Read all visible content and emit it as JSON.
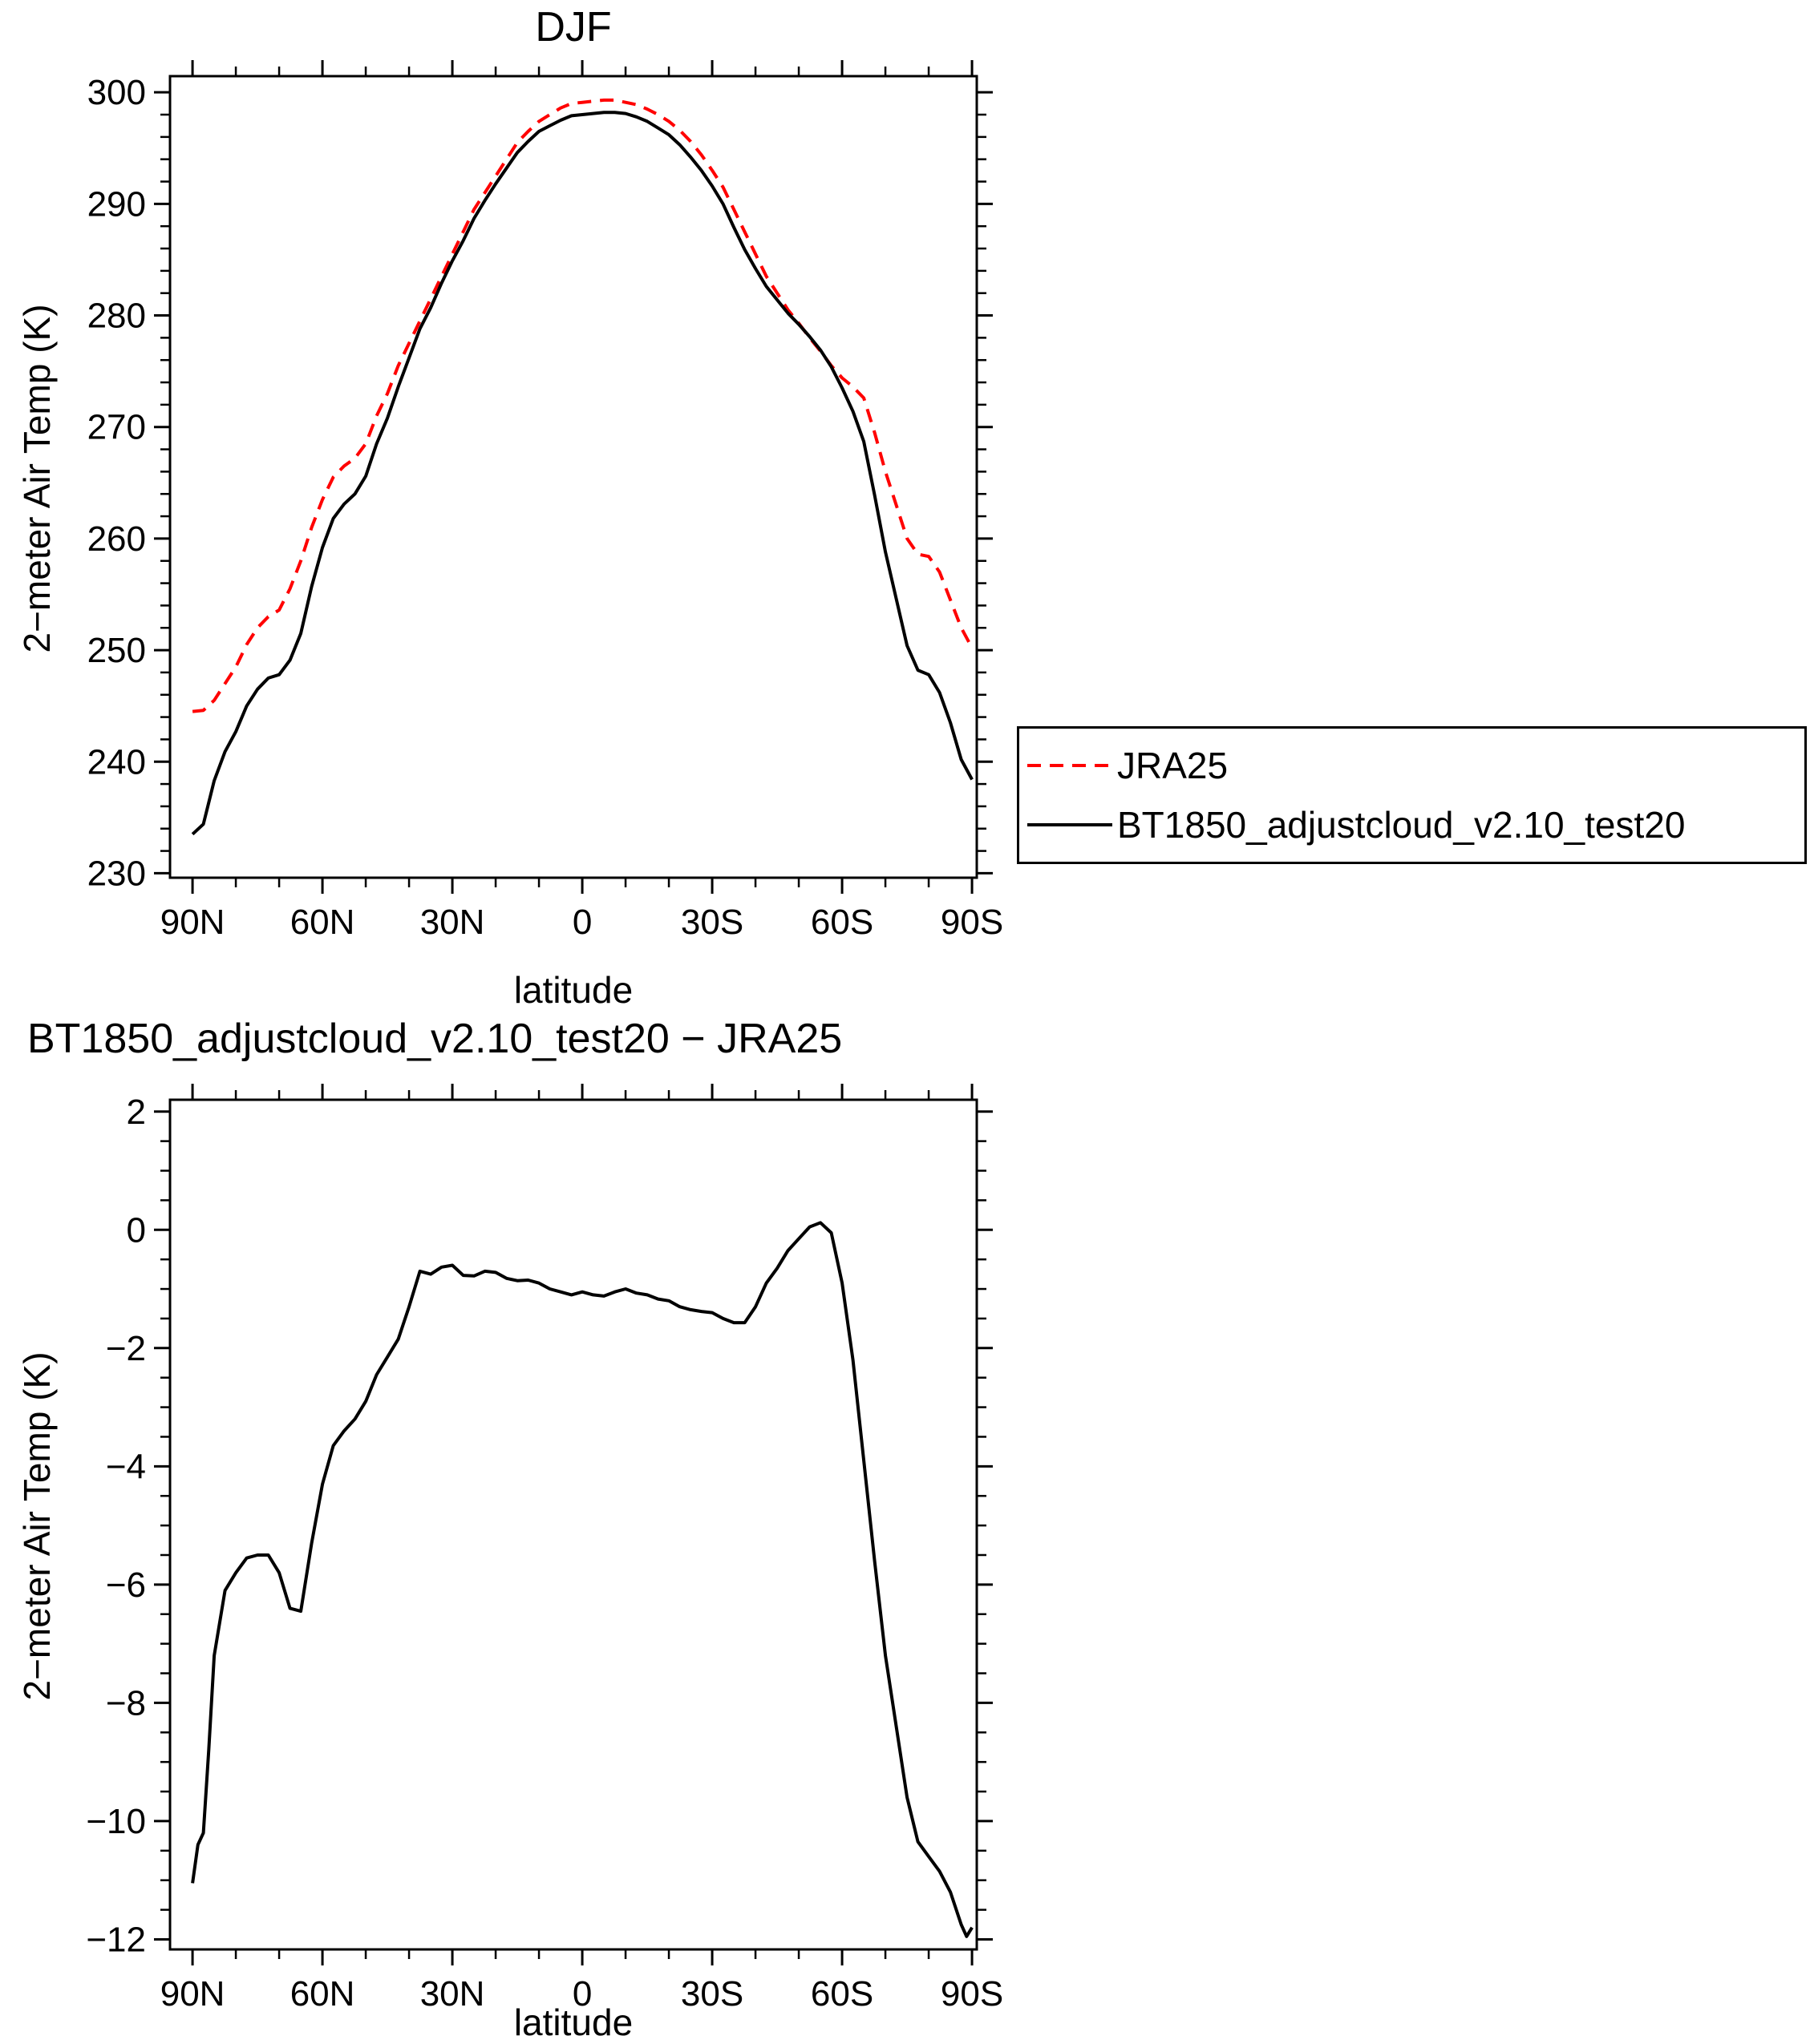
{
  "style": {
    "background": "#ffffff",
    "axis_color": "#000000",
    "red_series_color": "#ff0000"
  },
  "chart_data": [
    {
      "id": "djf",
      "type": "line",
      "title": "DJF",
      "xlabel": "latitude",
      "ylabel": "2−meter Air Temp (K)",
      "xlim": [
        95.2,
        -91.1
      ],
      "ylim": [
        229.6,
        301.45
      ],
      "grid": false,
      "x_minor_step": 10,
      "y_minor_step": 2,
      "xticks": [
        {
          "v": 90,
          "label": "90N"
        },
        {
          "v": 60,
          "label": "60N"
        },
        {
          "v": 30,
          "label": "30N"
        },
        {
          "v": 0,
          "label": "0"
        },
        {
          "v": -30,
          "label": "30S"
        },
        {
          "v": -60,
          "label": "60S"
        },
        {
          "v": -90,
          "label": "90S"
        }
      ],
      "yticks": [
        {
          "v": 230,
          "label": "230"
        },
        {
          "v": 240,
          "label": "240"
        },
        {
          "v": 250,
          "label": "250"
        },
        {
          "v": 260,
          "label": "260"
        },
        {
          "v": 270,
          "label": "270"
        },
        {
          "v": 280,
          "label": "280"
        },
        {
          "v": 290,
          "label": "290"
        },
        {
          "v": 300,
          "label": "300"
        }
      ],
      "legend": {
        "position": "outside-right-bottom",
        "border_color": "#000000"
      },
      "series": [
        {
          "id": "jra25",
          "name": "JRA25",
          "color": "#ff0000",
          "style": "dashed",
          "x": [
            90,
            87.5,
            85,
            82.5,
            80,
            77.5,
            75,
            72.5,
            70,
            67.5,
            65,
            62.5,
            60,
            57.5,
            55,
            52.5,
            50,
            47.5,
            45,
            42.5,
            40,
            37.5,
            35,
            32.5,
            30,
            27.5,
            25,
            22.5,
            20,
            17.5,
            15,
            12.5,
            10,
            7.5,
            5,
            2.5,
            0,
            -2.5,
            -5,
            -7.5,
            -10,
            -12.5,
            -15,
            -17.5,
            -20,
            -22.5,
            -25,
            -27.5,
            -30,
            -32.5,
            -35,
            -37.5,
            -40,
            -42.5,
            -45,
            -47.5,
            -50,
            -52.5,
            -55,
            -57.5,
            -60,
            -62.5,
            -65,
            -67.5,
            -70,
            -72.5,
            -75,
            -77.5,
            -80,
            -82.5,
            -85,
            -87.5,
            -90
          ],
          "y": [
            244.5,
            244.6,
            245.5,
            247.0,
            248.5,
            250.5,
            252.0,
            253.0,
            253.6,
            255.5,
            258.0,
            261.0,
            263.5,
            265.5,
            266.5,
            267.2,
            268.5,
            271.0,
            273.0,
            275.5,
            277.5,
            279.5,
            281.5,
            283.5,
            285.5,
            287.5,
            289.5,
            291.0,
            292.5,
            294.0,
            295.5,
            296.5,
            297.4,
            298.0,
            298.6,
            299.0,
            299.1,
            299.2,
            299.3,
            299.3,
            299.1,
            298.9,
            298.5,
            298.0,
            297.4,
            296.6,
            295.6,
            294.4,
            293.0,
            291.5,
            289.5,
            287.5,
            285.5,
            283.5,
            282.0,
            280.5,
            279.3,
            278.0,
            276.8,
            275.5,
            274.4,
            273.6,
            272.6,
            269.5,
            266.0,
            263.0,
            260.0,
            258.6,
            258.4,
            257.0,
            254.5,
            252.0,
            250.2
          ]
        },
        {
          "id": "bt1850",
          "name": "BT1850_adjustcloud_v2.10_test20",
          "color": "#000000",
          "style": "solid",
          "x": [
            90,
            87.5,
            85,
            82.5,
            80,
            77.5,
            75,
            72.5,
            70,
            67.5,
            65,
            62.5,
            60,
            57.5,
            55,
            52.5,
            50,
            47.5,
            45,
            42.5,
            40,
            37.5,
            35,
            32.5,
            30,
            27.5,
            25,
            22.5,
            20,
            17.5,
            15,
            12.5,
            10,
            7.5,
            5,
            2.5,
            0,
            -2.5,
            -5,
            -7.5,
            -10,
            -12.5,
            -15,
            -17.5,
            -20,
            -22.5,
            -25,
            -27.5,
            -30,
            -32.5,
            -35,
            -37.5,
            -40,
            -42.5,
            -45,
            -47.5,
            -50,
            -52.5,
            -55,
            -57.5,
            -60,
            -62.5,
            -65,
            -67.5,
            -70,
            -72.5,
            -75,
            -77.5,
            -80,
            -82.5,
            -85,
            -87.5,
            -90
          ],
          "y": [
            233.5,
            234.4,
            238.3,
            240.9,
            242.7,
            245.0,
            246.5,
            247.5,
            247.8,
            249.1,
            251.5,
            255.7,
            259.2,
            261.8,
            263.1,
            264.0,
            265.6,
            268.5,
            270.8,
            273.6,
            276.2,
            278.8,
            280.7,
            282.9,
            284.9,
            286.7,
            288.7,
            290.3,
            291.8,
            293.2,
            294.6,
            295.6,
            296.5,
            297.0,
            297.5,
            297.9,
            298.0,
            298.1,
            298.2,
            298.2,
            298.1,
            297.8,
            297.4,
            296.8,
            296.2,
            295.3,
            294.2,
            293.0,
            291.6,
            290.0,
            287.9,
            285.9,
            284.2,
            282.6,
            281.4,
            280.2,
            279.2,
            278.1,
            276.9,
            275.4,
            273.5,
            271.4,
            268.7,
            263.9,
            258.8,
            254.6,
            250.4,
            248.2,
            247.8,
            246.2,
            243.5,
            240.2,
            238.4
          ]
        }
      ]
    },
    {
      "id": "difference",
      "type": "line",
      "title": "BT1850_adjustcloud_v2.10_test20 − JRA25",
      "xlabel": "latitude",
      "ylabel": "2−meter Air Temp (K)",
      "xlim": [
        95.2,
        -91.1
      ],
      "ylim": [
        -12.17,
        2.2
      ],
      "grid": false,
      "x_minor_step": 10,
      "y_minor_step": 0.5,
      "xticks": [
        {
          "v": 90,
          "label": "90N"
        },
        {
          "v": 60,
          "label": "60N"
        },
        {
          "v": 30,
          "label": "30N"
        },
        {
          "v": 0,
          "label": "0"
        },
        {
          "v": -30,
          "label": "30S"
        },
        {
          "v": -60,
          "label": "60S"
        },
        {
          "v": -90,
          "label": "90S"
        }
      ],
      "yticks": [
        {
          "v": 2,
          "label": "2"
        },
        {
          "v": 0,
          "label": "0"
        },
        {
          "v": -2,
          "label": "−2"
        },
        {
          "v": -4,
          "label": "−4"
        },
        {
          "v": -6,
          "label": "−6"
        },
        {
          "v": -8,
          "label": "−8"
        },
        {
          "v": -10,
          "label": "−10"
        },
        {
          "v": -12,
          "label": "−12"
        }
      ],
      "series": [
        {
          "id": "bt1850_minus_jra25",
          "name": "BT1850_adjustcloud_v2.10_test20 − JRA25",
          "color": "#000000",
          "style": "solid",
          "x": [
            90,
            88.75,
            87.5,
            86.25,
            85,
            82.5,
            80,
            77.5,
            75,
            72.5,
            70,
            67.5,
            65,
            62.5,
            60,
            57.5,
            55,
            52.5,
            50,
            47.5,
            45,
            42.5,
            40,
            37.5,
            35,
            32.5,
            30,
            27.5,
            25,
            22.5,
            20,
            17.5,
            15,
            12.5,
            10,
            7.5,
            5,
            2.5,
            0,
            -2.5,
            -5,
            -7.5,
            -10,
            -12.5,
            -15,
            -17.5,
            -20,
            -22.5,
            -25,
            -27.5,
            -30,
            -32.5,
            -35,
            -37.5,
            -40,
            -42.5,
            -45,
            -47.5,
            -50,
            -52.5,
            -55,
            -57.5,
            -60,
            -62.5,
            -65,
            -67.5,
            -70,
            -72.5,
            -75,
            -77.5,
            -80,
            -82.5,
            -85,
            -87.5,
            -88.75,
            -90
          ],
          "y": [
            -11.05,
            -10.4,
            -10.2,
            -8.8,
            -7.2,
            -6.1,
            -5.8,
            -5.55,
            -5.5,
            -5.5,
            -5.8,
            -6.4,
            -6.45,
            -5.3,
            -4.3,
            -3.65,
            -3.4,
            -3.2,
            -2.9,
            -2.45,
            -2.15,
            -1.85,
            -1.3,
            -0.7,
            -0.75,
            -0.63,
            -0.6,
            -0.77,
            -0.78,
            -0.7,
            -0.72,
            -0.82,
            -0.86,
            -0.85,
            -0.9,
            -1.0,
            -1.05,
            -1.1,
            -1.05,
            -1.1,
            -1.12,
            -1.05,
            -1.0,
            -1.07,
            -1.1,
            -1.17,
            -1.2,
            -1.3,
            -1.35,
            -1.38,
            -1.4,
            -1.5,
            -1.57,
            -1.57,
            -1.3,
            -0.9,
            -0.65,
            -0.35,
            -0.15,
            0.05,
            0.12,
            -0.05,
            -0.9,
            -2.2,
            -3.9,
            -5.6,
            -7.2,
            -8.4,
            -9.6,
            -10.35,
            -10.6,
            -10.85,
            -11.2,
            -11.75,
            -11.95,
            -11.8
          ]
        }
      ]
    }
  ]
}
